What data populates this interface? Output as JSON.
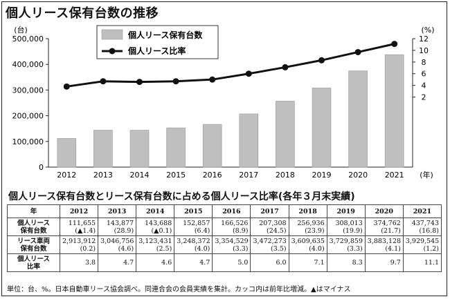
{
  "title": "個人リース保有台数の推移",
  "chart_data": {
    "type": "bar",
    "categories": [
      "2012",
      "2013",
      "2014",
      "2015",
      "2016",
      "2017",
      "2018",
      "2019",
      "2020",
      "2021"
    ],
    "xunit": "(年)",
    "series": [
      {
        "name": "個人リース保有台数",
        "type": "bar",
        "axis": "left",
        "color": "#bfbfbf",
        "values": [
          111655,
          143877,
          143688,
          152857,
          166526,
          207308,
          256936,
          308013,
          374762,
          437743
        ]
      },
      {
        "name": "個人リース比率",
        "type": "line",
        "axis": "right",
        "color": "#111111",
        "values": [
          3.8,
          4.7,
          4.6,
          4.7,
          5.0,
          6.0,
          7.1,
          8.3,
          9.7,
          11.1
        ]
      }
    ],
    "y_left": {
      "unit": "(台)",
      "ylim": [
        0,
        500000
      ],
      "ticks": [
        "0",
        "100,000",
        "200,000",
        "300,000",
        "400,000",
        "500,000"
      ]
    },
    "y_right": {
      "unit": "(%)",
      "ylim": [
        -10,
        12
      ],
      "ticks": [
        "2",
        "4",
        "6",
        "8",
        "10",
        "12"
      ]
    },
    "legend_position": "top-center",
    "grid": false
  },
  "table": {
    "title": "個人リース保有台数とリース保有台数に占める個人リース比率(各年３月末実績)",
    "header": [
      "年",
      "2012",
      "2013",
      "2014",
      "2015",
      "2016",
      "2017",
      "2018",
      "2019",
      "2020",
      "2021"
    ],
    "rows": [
      {
        "label": "個人リース\n保有台数",
        "cells": [
          "111,655\n(▲1.4)",
          "143,877\n(28.9)",
          "143,688\n(▲0.1)",
          "152,857\n(6.4)",
          "166,526\n(8.9)",
          "207,308\n(24.5)",
          "256,936\n(23.9)",
          "308,013\n(19.9)",
          "374,762\n(21.7)",
          "437,743\n(16.8)"
        ]
      },
      {
        "label": "リース車両\n保有台数",
        "cells": [
          "2,913,912\n(0.2)",
          "3,046,756\n(4.6)",
          "3,123,431\n(2.5)",
          "3,248,372\n(4.0)",
          "3,354,529\n(3.3)",
          "3,472,273\n(3.5)",
          "3,609,635\n(4.0)",
          "3,729,859\n(3.3)",
          "3,883,128\n(4.1)",
          "3,929,545\n(1.2)"
        ]
      },
      {
        "label": "個人リース\n比率",
        "cells": [
          "3.8",
          "4.7",
          "4.6",
          "4.7",
          "5.0",
          "6.0",
          "7.1",
          "8.3",
          "9.7",
          "11.1"
        ]
      }
    ]
  },
  "note": "単位：台、%。日本自動車リース協会調べ。同連合会の会員実績を集計。カッコ内は前年比増減。▲はマイナス"
}
